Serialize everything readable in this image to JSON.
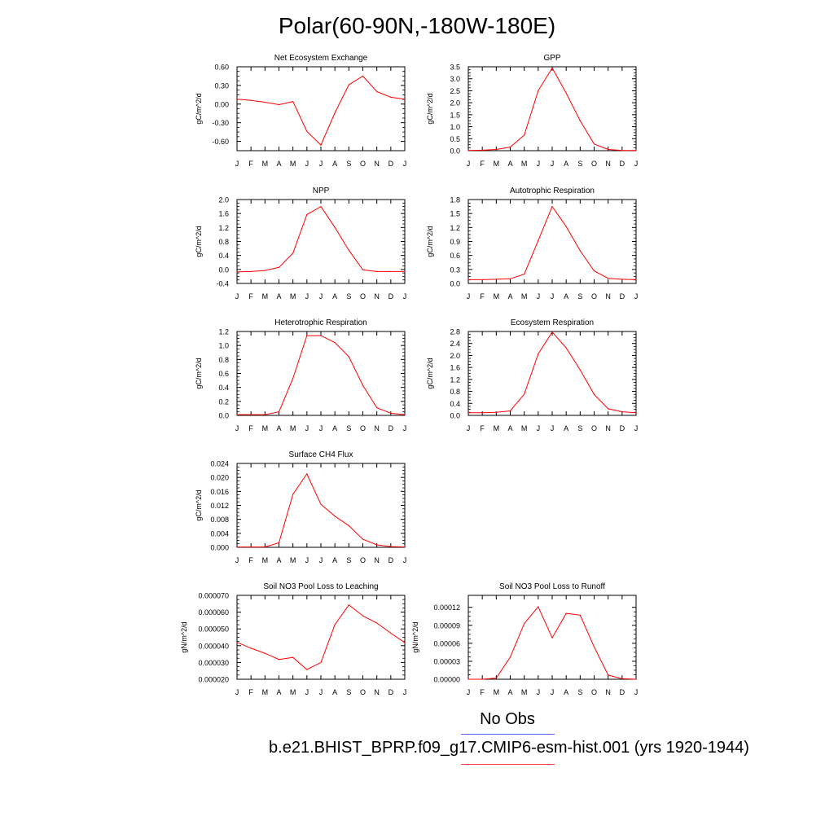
{
  "title": "Polar(60-90N,-180W-180E)",
  "legend": {
    "no_obs": "No Obs",
    "case": "b.e21.BHIST_BPRP.f09_g17.CMIP6-esm-hist.001 (yrs 1920-1944)"
  },
  "colors": {
    "model": "#ff0000",
    "obs": "#5566ff"
  },
  "chart_data": [
    {
      "type": "line",
      "title": "Net Ecosystem Exchange",
      "ylabel": "gC/m^2/d",
      "categories": [
        "J",
        "F",
        "M",
        "A",
        "M",
        "J",
        "J",
        "A",
        "S",
        "O",
        "N",
        "D",
        "J"
      ],
      "values": [
        0.08,
        0.06,
        0.03,
        -0.01,
        0.04,
        -0.44,
        -0.66,
        -0.14,
        0.31,
        0.45,
        0.2,
        0.11,
        0.08
      ],
      "ylim": [
        -0.75,
        0.6
      ],
      "yticks": [
        0.6,
        0.3,
        0.0,
        -0.3,
        -0.6
      ],
      "ytick_labels": [
        "0.60",
        "0.30",
        "0.00",
        "-0.30",
        "-0.60"
      ]
    },
    {
      "type": "line",
      "title": "GPP",
      "ylabel": "gC/m^2/d",
      "categories": [
        "J",
        "F",
        "M",
        "A",
        "M",
        "J",
        "J",
        "A",
        "S",
        "O",
        "N",
        "D",
        "J"
      ],
      "values": [
        0.01,
        0.02,
        0.05,
        0.15,
        0.65,
        2.5,
        3.45,
        2.4,
        1.25,
        0.28,
        0.05,
        0.01,
        0.01
      ],
      "ylim": [
        0,
        3.5
      ],
      "yticks": [
        0,
        0.5,
        1.0,
        1.5,
        2.0,
        2.5,
        3.0,
        3.5
      ],
      "ytick_labels": [
        "0.0",
        "0.5",
        "1.0",
        "1.5",
        "2.0",
        "2.5",
        "3.0",
        "3.5"
      ]
    },
    {
      "type": "line",
      "title": "NPP",
      "ylabel": "gC/m^2/d",
      "categories": [
        "J",
        "F",
        "M",
        "A",
        "M",
        "J",
        "J",
        "A",
        "S",
        "O",
        "N",
        "D",
        "J"
      ],
      "values": [
        -0.07,
        -0.06,
        -0.03,
        0.06,
        0.47,
        1.57,
        1.8,
        1.2,
        0.55,
        -0.01,
        -0.06,
        -0.06,
        -0.06
      ],
      "ylim": [
        -0.4,
        2.0
      ],
      "yticks": [
        -0.4,
        0.0,
        0.4,
        0.8,
        1.2,
        1.6,
        2.0
      ],
      "ytick_labels": [
        "-0.4",
        "0.0",
        "0.4",
        "0.8",
        "1.2",
        "1.6",
        "2.0"
      ]
    },
    {
      "type": "line",
      "title": "Autotrophic Respiration",
      "ylabel": "gC/m^2/d",
      "categories": [
        "J",
        "F",
        "M",
        "A",
        "M",
        "J",
        "J",
        "A",
        "S",
        "O",
        "N",
        "D",
        "J"
      ],
      "values": [
        0.08,
        0.08,
        0.09,
        0.1,
        0.2,
        0.92,
        1.65,
        1.22,
        0.7,
        0.27,
        0.11,
        0.09,
        0.08
      ],
      "ylim": [
        0,
        1.8
      ],
      "yticks": [
        0,
        0.3,
        0.6,
        0.9,
        1.2,
        1.5,
        1.8
      ],
      "ytick_labels": [
        "0.0",
        "0.3",
        "0.6",
        "0.9",
        "1.2",
        "1.5",
        "1.8"
      ]
    },
    {
      "type": "line",
      "title": "Heterotrophic Respiration",
      "ylabel": "gC/m^2/d",
      "categories": [
        "J",
        "F",
        "M",
        "A",
        "M",
        "J",
        "J",
        "A",
        "S",
        "O",
        "N",
        "D",
        "J"
      ],
      "values": [
        0.01,
        0.01,
        0.01,
        0.05,
        0.53,
        1.14,
        1.14,
        1.04,
        0.84,
        0.43,
        0.11,
        0.03,
        0.01
      ],
      "ylim": [
        0,
        1.2
      ],
      "yticks": [
        0,
        0.2,
        0.4,
        0.6,
        0.8,
        1.0,
        1.2
      ],
      "ytick_labels": [
        "0.0",
        "0.2",
        "0.4",
        "0.6",
        "0.8",
        "1.0",
        "1.2"
      ]
    },
    {
      "type": "line",
      "title": "Ecosystem Respiration",
      "ylabel": "gC/m^2/d",
      "categories": [
        "J",
        "F",
        "M",
        "A",
        "M",
        "J",
        "J",
        "A",
        "S",
        "O",
        "N",
        "D",
        "J"
      ],
      "values": [
        0.09,
        0.09,
        0.1,
        0.15,
        0.71,
        2.05,
        2.78,
        2.25,
        1.52,
        0.7,
        0.22,
        0.12,
        0.09
      ],
      "ylim": [
        0,
        2.8
      ],
      "yticks": [
        0,
        0.4,
        0.8,
        1.2,
        1.6,
        2.0,
        2.4,
        2.8
      ],
      "ytick_labels": [
        "0.0",
        "0.4",
        "0.8",
        "1.2",
        "1.6",
        "2.0",
        "2.4",
        "2.8"
      ]
    },
    {
      "type": "line",
      "title": "Surface CH4 Flux",
      "ylabel": "gC/m^2/d",
      "categories": [
        "J",
        "F",
        "M",
        "A",
        "M",
        "J",
        "J",
        "A",
        "S",
        "O",
        "N",
        "D",
        "J"
      ],
      "values": [
        0.0001,
        0.0001,
        0.0001,
        0.0013,
        0.0152,
        0.021,
        0.0123,
        0.0089,
        0.0062,
        0.0023,
        0.0007,
        0.0002,
        0.0001
      ],
      "ylim": [
        0,
        0.024
      ],
      "yticks": [
        0,
        0.004,
        0.008,
        0.012,
        0.016,
        0.02,
        0.024
      ],
      "ytick_labels": [
        "0.000",
        "0.004",
        "0.008",
        "0.012",
        "0.016",
        "0.020",
        "0.024"
      ]
    },
    {
      "type": "line",
      "title": "Soil NO3 Pool Loss to Leaching",
      "ylabel": "gN/m^2/d",
      "categories": [
        "J",
        "F",
        "M",
        "A",
        "M",
        "J",
        "J",
        "A",
        "S",
        "O",
        "N",
        "D",
        "J"
      ],
      "values": [
        4.2e-05,
        3.85e-05,
        3.55e-05,
        3.18e-05,
        3.3e-05,
        2.58e-05,
        3e-05,
        5.25e-05,
        6.43e-05,
        5.78e-05,
        5.35e-05,
        4.75e-05,
        4.18e-05
      ],
      "ylim": [
        2e-05,
        7e-05
      ],
      "yticks": [
        2e-05,
        3e-05,
        4e-05,
        5e-05,
        6e-05,
        7e-05
      ],
      "ytick_labels": [
        "0.000020",
        "0.000030",
        "0.000040",
        "0.000050",
        "0.000060",
        "0.000070"
      ]
    },
    {
      "type": "line",
      "title": "Soil NO3 Pool Loss to Runoff",
      "ylabel": "gN/m^2/d",
      "categories": [
        "J",
        "F",
        "M",
        "A",
        "M",
        "J",
        "J",
        "A",
        "S",
        "O",
        "N",
        "D",
        "J"
      ],
      "values": [
        0.0,
        0.0,
        2e-06,
        3.7e-05,
        9.3e-05,
        0.000121,
        6.9e-05,
        0.00011,
        0.000107,
        5.4e-05,
        7e-06,
        1e-06,
        0.0
      ],
      "ylim": [
        0,
        0.00014
      ],
      "yticks": [
        0,
        3e-05,
        6e-05,
        9e-05,
        0.00012
      ],
      "ytick_labels": [
        "0.00000",
        "0.00003",
        "0.00006",
        "0.00009",
        "0.00012"
      ]
    }
  ]
}
